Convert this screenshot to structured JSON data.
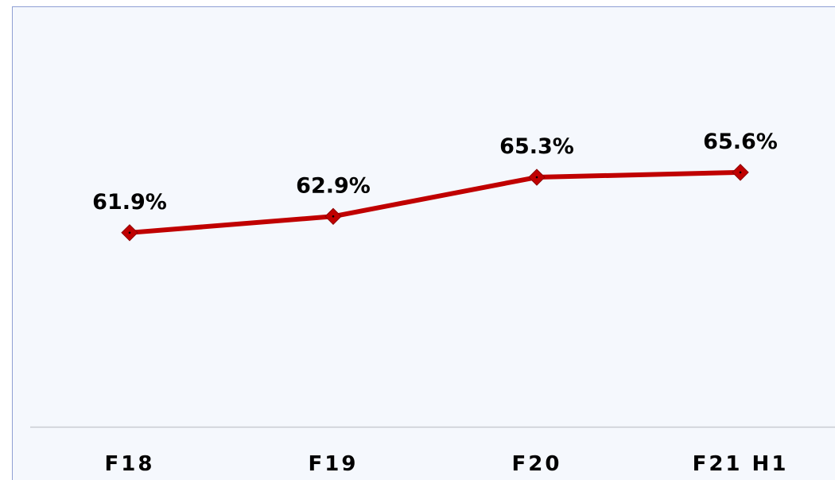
{
  "chart_data": {
    "type": "line",
    "categories": [
      "F18",
      "F19",
      "F20",
      "F21 H1"
    ],
    "series": [
      {
        "color": "#c00000",
        "values": [
          61.9,
          62.9,
          65.3,
          65.6
        ],
        "value_labels": [
          "61.9%",
          "62.9%",
          "65.3%",
          "65.6%"
        ]
      }
    ],
    "ylim": [
      50,
      75
    ]
  }
}
